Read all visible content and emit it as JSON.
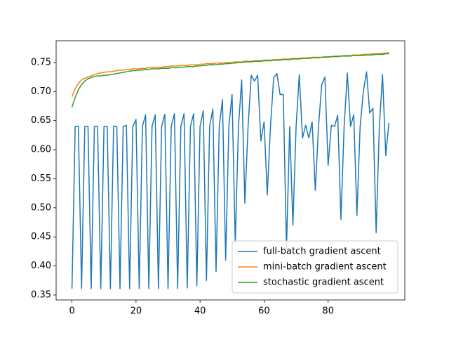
{
  "chart_data": {
    "type": "line",
    "x": [
      0,
      1,
      2,
      3,
      4,
      5,
      6,
      7,
      8,
      9,
      10,
      11,
      12,
      13,
      14,
      15,
      16,
      17,
      18,
      19,
      20,
      21,
      22,
      23,
      24,
      25,
      26,
      27,
      28,
      29,
      30,
      31,
      32,
      33,
      34,
      35,
      36,
      37,
      38,
      39,
      40,
      41,
      42,
      43,
      44,
      45,
      46,
      47,
      48,
      49,
      50,
      51,
      52,
      53,
      54,
      55,
      56,
      57,
      58,
      59,
      60,
      61,
      62,
      63,
      64,
      65,
      66,
      67,
      68,
      69,
      70,
      71,
      72,
      73,
      74,
      75,
      76,
      77,
      78,
      79,
      80,
      81,
      82,
      83,
      84,
      85,
      86,
      87,
      88,
      89,
      90,
      91,
      92,
      93,
      94,
      95,
      96,
      97,
      98,
      99
    ],
    "series": [
      {
        "name": "full-batch gradient ascent",
        "color": "#1f77b4",
        "values": [
          0.361,
          0.64,
          0.64,
          0.361,
          0.64,
          0.64,
          0.361,
          0.64,
          0.64,
          0.361,
          0.64,
          0.64,
          0.361,
          0.64,
          0.64,
          0.361,
          0.64,
          0.642,
          0.361,
          0.64,
          0.652,
          0.361,
          0.64,
          0.66,
          0.361,
          0.64,
          0.66,
          0.361,
          0.64,
          0.661,
          0.361,
          0.64,
          0.662,
          0.361,
          0.64,
          0.662,
          0.362,
          0.64,
          0.662,
          0.366,
          0.64,
          0.667,
          0.375,
          0.64,
          0.67,
          0.39,
          0.64,
          0.686,
          0.41,
          0.64,
          0.695,
          0.44,
          0.64,
          0.72,
          0.508,
          0.64,
          0.728,
          0.718,
          0.728,
          0.615,
          0.648,
          0.522,
          0.64,
          0.724,
          0.731,
          0.695,
          0.695,
          0.43,
          0.64,
          0.47,
          0.64,
          0.729,
          0.62,
          0.642,
          0.62,
          0.648,
          0.53,
          0.64,
          0.712,
          0.725,
          0.573,
          0.642,
          0.64,
          0.659,
          0.48,
          0.64,
          0.732,
          0.64,
          0.66,
          0.487,
          0.64,
          0.7,
          0.734,
          0.663,
          0.671,
          0.457,
          0.64,
          0.729,
          0.59,
          0.646
        ]
      },
      {
        "name": "mini-batch gradient ascent",
        "color": "#ff7f0e",
        "values": [
          0.691,
          0.705,
          0.714,
          0.72,
          0.723,
          0.725,
          0.727,
          0.729,
          0.731,
          0.732,
          0.733,
          0.734,
          0.734,
          0.735,
          0.736,
          0.737,
          0.737,
          0.738,
          0.738,
          0.739,
          0.739,
          0.739,
          0.74,
          0.74,
          0.741,
          0.741,
          0.742,
          0.742,
          0.742,
          0.743,
          0.743,
          0.744,
          0.744,
          0.744,
          0.745,
          0.745,
          0.745,
          0.746,
          0.746,
          0.746,
          0.747,
          0.747,
          0.748,
          0.748,
          0.748,
          0.749,
          0.749,
          0.749,
          0.75,
          0.75,
          0.75,
          0.751,
          0.751,
          0.751,
          0.752,
          0.752,
          0.752,
          0.753,
          0.753,
          0.753,
          0.754,
          0.754,
          0.754,
          0.755,
          0.755,
          0.755,
          0.756,
          0.756,
          0.756,
          0.757,
          0.757,
          0.757,
          0.758,
          0.758,
          0.758,
          0.759,
          0.759,
          0.759,
          0.759,
          0.76,
          0.76,
          0.76,
          0.761,
          0.761,
          0.761,
          0.762,
          0.762,
          0.762,
          0.763,
          0.763,
          0.763,
          0.764,
          0.764,
          0.764,
          0.765,
          0.765,
          0.765,
          0.766,
          0.766,
          0.767
        ]
      },
      {
        "name": "stochastic gradient ascent",
        "color": "#2ca02c",
        "values": [
          0.673,
          0.69,
          0.703,
          0.712,
          0.718,
          0.722,
          0.724,
          0.726,
          0.727,
          0.727,
          0.728,
          0.728,
          0.729,
          0.73,
          0.731,
          0.732,
          0.733,
          0.734,
          0.735,
          0.736,
          0.736,
          0.737,
          0.737,
          0.738,
          0.738,
          0.739,
          0.739,
          0.739,
          0.74,
          0.74,
          0.74,
          0.741,
          0.741,
          0.741,
          0.742,
          0.742,
          0.743,
          0.743,
          0.743,
          0.744,
          0.744,
          0.745,
          0.745,
          0.746,
          0.746,
          0.746,
          0.747,
          0.747,
          0.748,
          0.748,
          0.749,
          0.749,
          0.75,
          0.75,
          0.751,
          0.751,
          0.751,
          0.752,
          0.752,
          0.752,
          0.753,
          0.753,
          0.753,
          0.754,
          0.754,
          0.754,
          0.755,
          0.755,
          0.755,
          0.756,
          0.756,
          0.756,
          0.757,
          0.757,
          0.757,
          0.758,
          0.758,
          0.758,
          0.759,
          0.759,
          0.759,
          0.76,
          0.76,
          0.76,
          0.761,
          0.761,
          0.761,
          0.761,
          0.762,
          0.762,
          0.762,
          0.762,
          0.763,
          0.763,
          0.763,
          0.764,
          0.764,
          0.764,
          0.765,
          0.765
        ]
      }
    ],
    "xlim": [
      -4.95,
      103.95
    ],
    "xticks": [
      0,
      20,
      40,
      60,
      80
    ],
    "ylim": [
      0.3415,
      0.7874
    ],
    "yticks": [
      0.35,
      0.4,
      0.45,
      0.5,
      0.55,
      0.6,
      0.65,
      0.7,
      0.75
    ],
    "legend": "lower right"
  }
}
